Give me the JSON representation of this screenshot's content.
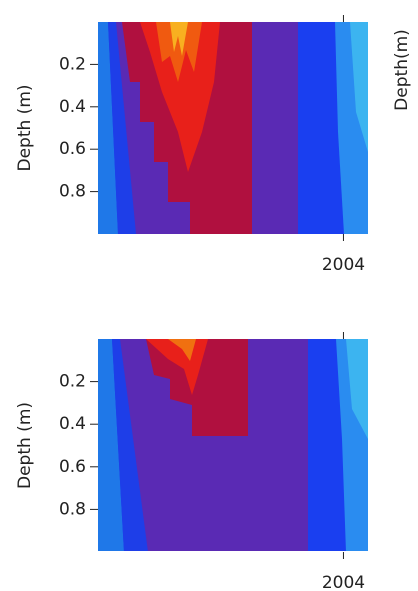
{
  "chart_data": [
    {
      "type": "contour",
      "ylabel": "Depth (m)",
      "neighbor_ylabel": "Depth(m)",
      "ylim": [
        0,
        1
      ],
      "inverted_y": true,
      "yticks": [
        0.2,
        0.4,
        0.6,
        0.8
      ],
      "xlim": [
        2003,
        2004.1
      ],
      "xticks": [
        2004
      ]
    },
    {
      "type": "contour",
      "ylabel": "Depth (m)",
      "ylim": [
        0,
        1
      ],
      "inverted_y": true,
      "yticks": [
        0.2,
        0.4,
        0.6,
        0.8
      ],
      "xlim": [
        2003,
        2004.1
      ],
      "xticks": [
        2004
      ]
    }
  ]
}
